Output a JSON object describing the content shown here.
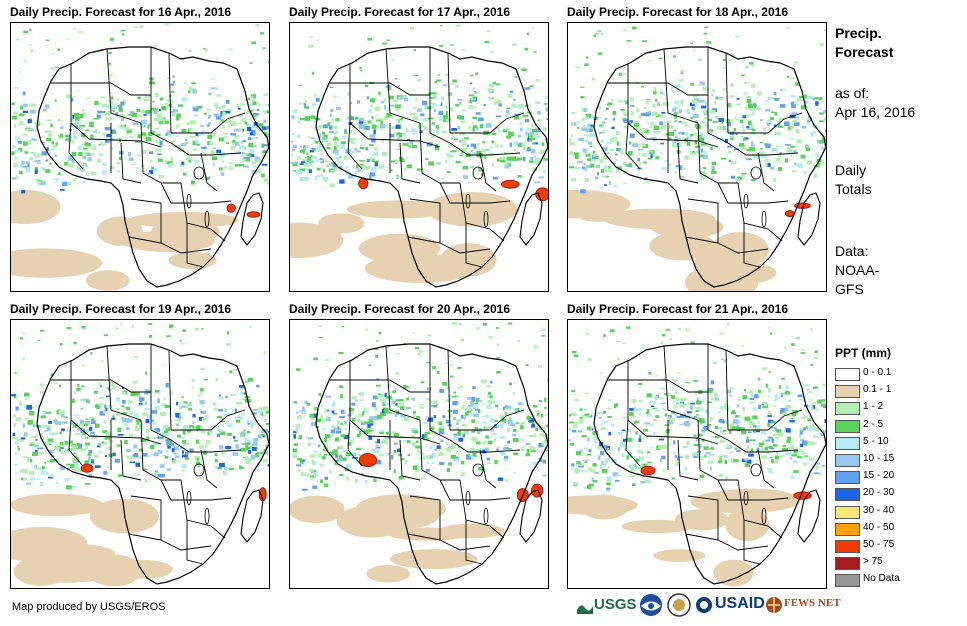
{
  "panels": [
    {
      "title": "Daily Precip. Forecast for 16 Apr., 2016",
      "seed": 11
    },
    {
      "title": "Daily Precip. Forecast for 17 Apr., 2016",
      "seed": 23
    },
    {
      "title": "Daily Precip. Forecast for 18 Apr., 2016",
      "seed": 37
    },
    {
      "title": "Daily Precip. Forecast for 19 Apr., 2016",
      "seed": 41
    },
    {
      "title": "Daily Precip. Forecast for 20 Apr., 2016",
      "seed": 53
    },
    {
      "title": "Daily Precip. Forecast for 21 Apr., 2016",
      "seed": 67
    }
  ],
  "side": {
    "heading_line1": "Precip.",
    "heading_line2": "Forecast",
    "asof_line1": "as of:",
    "asof_line2": "Apr 16, 2016",
    "daily_line1": "Daily",
    "daily_line2": "Totals",
    "data_line1": "Data:",
    "data_line2": "NOAA-",
    "data_line3": "GFS"
  },
  "legend": {
    "title": "PPT (mm)",
    "items": [
      {
        "label": "0 - 0.1",
        "color": "#ffffff"
      },
      {
        "label": "0.1 - 1",
        "color": "#e6d2b0"
      },
      {
        "label": "1 - 2",
        "color": "#b4f0b4"
      },
      {
        "label": "2 - 5",
        "color": "#5ad25a"
      },
      {
        "label": "5 - 10",
        "color": "#b4ecf5"
      },
      {
        "label": "10 - 15",
        "color": "#96c8f0"
      },
      {
        "label": "15 - 20",
        "color": "#64a0f0"
      },
      {
        "label": "20 - 30",
        "color": "#1e64e6"
      },
      {
        "label": "30 - 40",
        "color": "#ffe678"
      },
      {
        "label": "40 - 50",
        "color": "#ffa000"
      },
      {
        "label": "50 - 75",
        "color": "#f03c00"
      },
      {
        "label": "> 75",
        "color": "#a01e1e"
      },
      {
        "label": "No Data",
        "color": "#969696"
      }
    ]
  },
  "footer": {
    "credit": "Map produced by USGS/EROS",
    "logo_usgs": "USGS",
    "logo_usaid": "USAID",
    "logo_fews": "FEWS NET"
  }
}
